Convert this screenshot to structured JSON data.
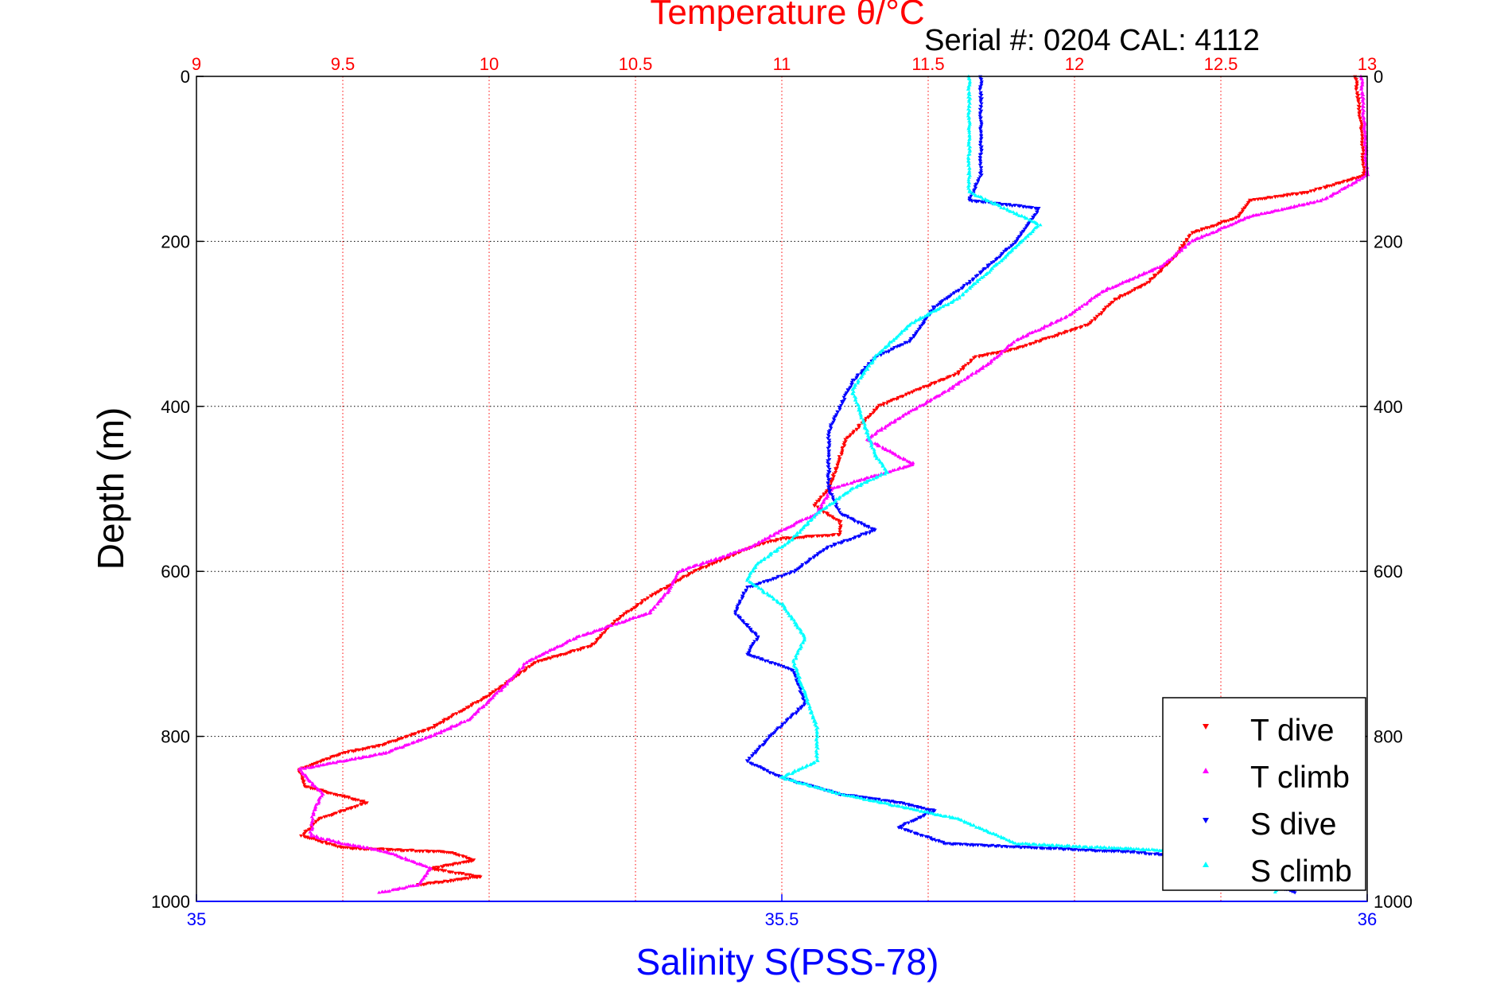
{
  "chart_data": {
    "type": "scatter",
    "title": "Temperature θ/°C",
    "subtitle": "Serial #: 0204  CAL: 4112",
    "ylabel": "Depth (m)",
    "xlabel_bottom": "Salinity S(PSS-78)",
    "y_axis": {
      "range": [
        0,
        1000
      ],
      "reversed": true,
      "ticks": [
        0,
        200,
        400,
        600,
        800,
        1000
      ]
    },
    "x_axis_top": {
      "quantity": "temperature",
      "range": [
        9,
        13
      ],
      "ticks": [
        9,
        9.5,
        10,
        10.5,
        11,
        11.5,
        12,
        12.5,
        13
      ],
      "tick_labels": [
        "9",
        "9.5",
        "10",
        "10.5",
        "11",
        "11.5",
        "12",
        "12.5",
        "13"
      ]
    },
    "x_axis_bottom": {
      "quantity": "salinity",
      "range": [
        35,
        36
      ],
      "ticks": [
        35,
        35.5,
        36
      ],
      "tick_labels": [
        "35",
        "35.5",
        "36"
      ]
    },
    "grid": true,
    "legend": {
      "position": "bottom-right"
    },
    "colors": {
      "temperature_axis": "#ff0000",
      "salinity_axis": "#0000ff",
      "grid": "#000000",
      "frame": "#000000"
    },
    "series": [
      {
        "name": "T dive",
        "axis": "top",
        "color": "#ff0000",
        "marker": "down-triangle",
        "points": [
          [
            12.96,
            0
          ],
          [
            12.98,
            60
          ],
          [
            12.99,
            120
          ],
          [
            12.8,
            140
          ],
          [
            12.6,
            150
          ],
          [
            12.56,
            170
          ],
          [
            12.4,
            190
          ],
          [
            12.34,
            220
          ],
          [
            12.25,
            250
          ],
          [
            12.14,
            270
          ],
          [
            12.05,
            300
          ],
          [
            11.8,
            330
          ],
          [
            11.66,
            340
          ],
          [
            11.6,
            360
          ],
          [
            11.46,
            380
          ],
          [
            11.33,
            400
          ],
          [
            11.22,
            440
          ],
          [
            11.19,
            470
          ],
          [
            11.16,
            500
          ],
          [
            11.11,
            520
          ],
          [
            11.2,
            540
          ],
          [
            11.2,
            555
          ],
          [
            11.0,
            560
          ],
          [
            10.9,
            570
          ],
          [
            10.7,
            600
          ],
          [
            10.55,
            630
          ],
          [
            10.43,
            660
          ],
          [
            10.35,
            690
          ],
          [
            10.16,
            710
          ],
          [
            10.0,
            750
          ],
          [
            9.8,
            790
          ],
          [
            9.64,
            810
          ],
          [
            9.5,
            820
          ],
          [
            9.35,
            840
          ],
          [
            9.37,
            860
          ],
          [
            9.58,
            880
          ],
          [
            9.42,
            900
          ],
          [
            9.36,
            920
          ],
          [
            9.5,
            935
          ],
          [
            9.86,
            940
          ],
          [
            9.95,
            950
          ],
          [
            9.8,
            960
          ],
          [
            9.97,
            970
          ],
          [
            9.75,
            980
          ]
        ]
      },
      {
        "name": "T climb",
        "axis": "top",
        "color": "#ff00ff",
        "marker": "up-triangle",
        "points": [
          [
            12.98,
            0
          ],
          [
            12.99,
            60
          ],
          [
            13.0,
            120
          ],
          [
            12.85,
            150
          ],
          [
            12.6,
            170
          ],
          [
            12.4,
            200
          ],
          [
            12.3,
            230
          ],
          [
            12.1,
            260
          ],
          [
            11.98,
            290
          ],
          [
            11.8,
            320
          ],
          [
            11.7,
            350
          ],
          [
            11.57,
            380
          ],
          [
            11.42,
            410
          ],
          [
            11.29,
            440
          ],
          [
            11.45,
            470
          ],
          [
            11.17,
            500
          ],
          [
            11.12,
            530
          ],
          [
            11.0,
            550
          ],
          [
            10.9,
            570
          ],
          [
            10.65,
            600
          ],
          [
            10.62,
            620
          ],
          [
            10.55,
            650
          ],
          [
            10.3,
            680
          ],
          [
            10.13,
            710
          ],
          [
            10.05,
            740
          ],
          [
            9.93,
            780
          ],
          [
            9.8,
            800
          ],
          [
            9.65,
            820
          ],
          [
            9.35,
            840
          ],
          [
            9.43,
            870
          ],
          [
            9.4,
            890
          ],
          [
            9.39,
            920
          ],
          [
            9.5,
            930
          ],
          [
            9.65,
            940
          ],
          [
            9.8,
            960
          ],
          [
            9.76,
            980
          ],
          [
            9.62,
            990
          ]
        ]
      },
      {
        "name": "S dive",
        "axis": "bottom",
        "color": "#0000ff",
        "marker": "down-triangle",
        "points": [
          [
            35.67,
            0
          ],
          [
            35.67,
            60
          ],
          [
            35.67,
            120
          ],
          [
            35.66,
            150
          ],
          [
            35.72,
            160
          ],
          [
            35.7,
            200
          ],
          [
            35.66,
            250
          ],
          [
            35.63,
            280
          ],
          [
            35.61,
            320
          ],
          [
            35.58,
            340
          ],
          [
            35.56,
            370
          ],
          [
            35.55,
            400
          ],
          [
            35.54,
            430
          ],
          [
            35.54,
            470
          ],
          [
            35.54,
            500
          ],
          [
            35.55,
            530
          ],
          [
            35.58,
            550
          ],
          [
            35.54,
            570
          ],
          [
            35.51,
            600
          ],
          [
            35.47,
            620
          ],
          [
            35.46,
            650
          ],
          [
            35.48,
            680
          ],
          [
            35.47,
            700
          ],
          [
            35.51,
            720
          ],
          [
            35.52,
            760
          ],
          [
            35.49,
            800
          ],
          [
            35.47,
            830
          ],
          [
            35.5,
            850
          ],
          [
            35.55,
            870
          ],
          [
            35.6,
            880
          ],
          [
            35.63,
            890
          ],
          [
            35.6,
            910
          ],
          [
            35.64,
            930
          ],
          [
            35.8,
            940
          ],
          [
            35.92,
            955
          ],
          [
            35.95,
            965
          ],
          [
            35.92,
            980
          ],
          [
            35.94,
            990
          ]
        ]
      },
      {
        "name": "S climb",
        "axis": "bottom",
        "color": "#00ffff",
        "marker": "up-triangle",
        "points": [
          [
            35.66,
            0
          ],
          [
            35.66,
            60
          ],
          [
            35.66,
            140
          ],
          [
            35.72,
            180
          ],
          [
            35.69,
            220
          ],
          [
            35.65,
            270
          ],
          [
            35.61,
            300
          ],
          [
            35.58,
            340
          ],
          [
            35.56,
            380
          ],
          [
            35.57,
            420
          ],
          [
            35.58,
            460
          ],
          [
            35.59,
            480
          ],
          [
            35.56,
            500
          ],
          [
            35.53,
            530
          ],
          [
            35.51,
            560
          ],
          [
            35.48,
            590
          ],
          [
            35.47,
            610
          ],
          [
            35.5,
            640
          ],
          [
            35.52,
            680
          ],
          [
            35.51,
            710
          ],
          [
            35.52,
            750
          ],
          [
            35.53,
            790
          ],
          [
            35.53,
            830
          ],
          [
            35.5,
            850
          ],
          [
            35.55,
            870
          ],
          [
            35.65,
            900
          ],
          [
            35.7,
            930
          ],
          [
            35.85,
            940
          ],
          [
            35.9,
            955
          ],
          [
            35.93,
            970
          ],
          [
            35.92,
            990
          ]
        ]
      }
    ]
  }
}
